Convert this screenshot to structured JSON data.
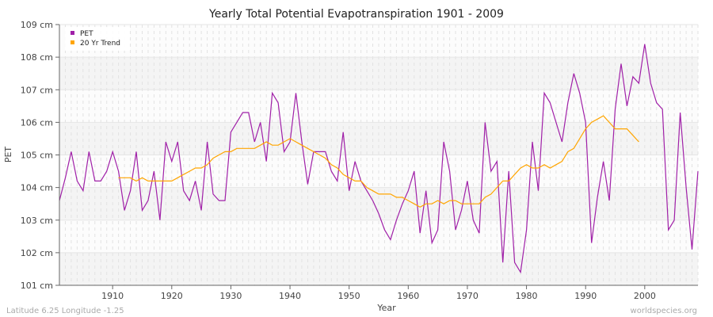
{
  "chart_data": {
    "type": "line",
    "title": "Yearly Total Potential Evapotranspiration 1901 - 2009",
    "xlabel": "Year",
    "ylabel": "PET",
    "xlim": [
      1901,
      2009
    ],
    "ylim": [
      101,
      109
    ],
    "y_unit": "cm",
    "x_ticks": [
      1910,
      1920,
      1930,
      1940,
      1950,
      1960,
      1970,
      1980,
      1990,
      2000
    ],
    "y_ticks": [
      "101 cm",
      "102 cm",
      "103 cm",
      "104 cm",
      "105 cm",
      "106 cm",
      "107 cm",
      "108 cm",
      "109 cm"
    ],
    "grid": true,
    "legend_placement": "top-left",
    "series": [
      {
        "name": "PET",
        "color": "#a020a8",
        "x_start": 1901,
        "values": [
          103.6,
          104.3,
          105.1,
          104.2,
          103.9,
          105.1,
          104.2,
          104.2,
          104.5,
          105.1,
          104.5,
          103.3,
          103.9,
          105.1,
          103.3,
          103.6,
          104.5,
          103.0,
          105.4,
          104.8,
          105.4,
          103.9,
          103.6,
          104.2,
          103.3,
          105.4,
          103.8,
          103.6,
          103.6,
          105.7,
          106.0,
          106.3,
          106.3,
          105.4,
          106.0,
          104.8,
          106.9,
          106.6,
          105.1,
          105.4,
          106.9,
          105.4,
          104.1,
          105.1,
          105.1,
          105.1,
          104.5,
          104.2,
          105.7,
          103.9,
          104.8,
          104.2,
          103.9,
          103.6,
          103.2,
          102.7,
          102.4,
          103.0,
          103.5,
          103.9,
          104.5,
          102.6,
          103.9,
          102.3,
          102.7,
          105.4,
          104.5,
          102.7,
          103.3,
          104.2,
          103.0,
          102.6,
          106.0,
          104.5,
          104.8,
          101.7,
          104.5,
          101.7,
          101.4,
          102.7,
          105.4,
          103.9,
          106.9,
          106.6,
          106.0,
          105.4,
          106.6,
          107.5,
          106.9,
          106.0,
          102.3,
          103.7,
          104.8,
          103.6,
          106.4,
          107.8,
          106.5,
          107.4,
          107.2,
          108.4,
          107.2,
          106.6,
          106.4,
          102.7,
          103.0,
          106.3,
          104.0,
          102.1,
          104.5
        ]
      },
      {
        "name": "20 Yr Trend",
        "color": "#ffa500",
        "x_start": 1911,
        "values": [
          104.3,
          104.3,
          104.3,
          104.2,
          104.3,
          104.2,
          104.2,
          104.2,
          104.2,
          104.2,
          104.3,
          104.4,
          104.5,
          104.6,
          104.6,
          104.7,
          104.9,
          105.0,
          105.1,
          105.1,
          105.2,
          105.2,
          105.2,
          105.2,
          105.3,
          105.4,
          105.3,
          105.3,
          105.4,
          105.5,
          105.4,
          105.3,
          105.2,
          105.1,
          105.0,
          104.9,
          104.7,
          104.6,
          104.4,
          104.3,
          104.2,
          104.2,
          104.0,
          103.9,
          103.8,
          103.8,
          103.8,
          103.7,
          103.7,
          103.6,
          103.5,
          103.4,
          103.5,
          103.5,
          103.6,
          103.5,
          103.6,
          103.6,
          103.5,
          103.5,
          103.5,
          103.5,
          103.7,
          103.8,
          104.0,
          104.2,
          104.2,
          104.4,
          104.6,
          104.7,
          104.6,
          104.6,
          104.7,
          104.6,
          104.7,
          104.8,
          105.1,
          105.2,
          105.5,
          105.8,
          106.0,
          106.1,
          106.2,
          106.0,
          105.8,
          105.8,
          105.8,
          105.6,
          105.4
        ]
      }
    ]
  },
  "footer": {
    "location": "Latitude 6.25 Longitude -1.25",
    "source": "worldspecies.org"
  }
}
